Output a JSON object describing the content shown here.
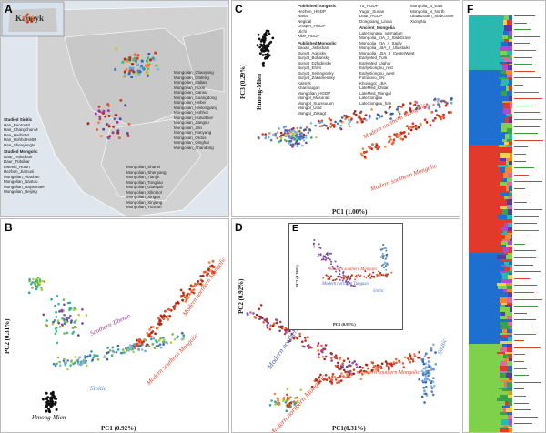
{
  "panels": {
    "A": {
      "label": "A",
      "inset_label": "Kalmyk",
      "studied_sinitic_title": "Studied Sinitic",
      "studied_sinitic": [
        "Han_BaotouM",
        "Han_ChangchunM",
        "Han_HarbinM",
        "Han_HohhotHetM",
        "Han_ShenyangM"
      ],
      "studied_mongolic_title": "Studied Mongolic",
      "studied_mongolic": [
        "Daur_Hulunbuir",
        "Daur_Tsitsihar",
        "Ewenki_Hulun",
        "Hezhen_Jiamusi",
        "Mongolian_Alashan",
        "Mongolian_Baotou",
        "Mongolian_Bayannaer",
        "Mongolian_Beijing"
      ],
      "col2": [
        "Mongolian_Chaoyang",
        "Mongolian_Chifeng",
        "Mongolian_Dalian",
        "Mongolian_Fuxin",
        "Mongolian_Gansu",
        "Mongolian_Guangdong",
        "Mongolian_Hebei",
        "Mongolian_Heilongjiang",
        "Mongolian_Hohhot",
        "Mongolian_HulunBuir",
        "Mongolian_Jiangsu",
        "Mongolian_Jilin",
        "Mongolian_Nanyang",
        "Mongolian_Ordos",
        "Mongolian_Qinghai",
        "Mongolian_Shandong"
      ],
      "col3": [
        "Mongolian_Shanxi",
        "Mongolian_Shenyang",
        "Mongolian_Tianjin",
        "Mongolian_Tongliao",
        "Mongolian_Ulanqab",
        "Mongolian_XilinGol",
        "Mongolian_Xingan",
        "Mongolian_Xinjiang",
        "Mongolian_Yunnan"
      ]
    },
    "B": {
      "label": "B",
      "xlabel": "PC1 (0.92%)",
      "ylabel": "PC2 (0.31%)",
      "clusters": [
        "Hmong-Mien",
        "Sinitic",
        "Southern Tibetan",
        "Modern southern Mongolic",
        "Modern northern Mongolic"
      ]
    },
    "C": {
      "label": "C",
      "xlabel": "PC1 (1.00%)",
      "ylabel": "PC3 (0.29%)",
      "clusters": [
        "Hmong-Mien",
        "Modern northern Mongolic",
        "Modern southern Mongolic"
      ],
      "legend1_title": "Published Tungusic",
      "legend1": [
        "Hezhen_HGDP",
        "Nanai",
        "Negidal",
        "Oroqen_HGDP",
        "Ulchi",
        "Xibe_HGDP"
      ],
      "legend2_title": "Published Mongolic",
      "legend2": [
        "Baoan_Jishishan",
        "Buryat_Aginsky",
        "Buryat_Bohansky",
        "Buryat_Dzhidinsky",
        "Buryat_Ehirit",
        "Buryat_Selenginsky",
        "Buryat_Zakamensky",
        "Kalmyk",
        "Kharnuugan",
        "Mongolian_HGDP",
        "Mongol_Masorias",
        "Mongol_Suussuuon",
        "Mongol_Uuld",
        "Mongol_Zasagt"
      ],
      "legend3": [
        "Tu_HGDP",
        "Yugur_Sunan",
        "Daur_HGDP",
        "Dongxiang_Linxia"
      ],
      "legend4_title": "Ancient_Mongolia",
      "legend4": [
        "LateXiongnu_sarmatian",
        "Mongolia_EIA_3_SlabGrave",
        "Mongolia_EIA_4_Sagly",
        "Mongolia_LBA_2_Uliastaikh",
        "Mongolia_LBA_4_CenterWest",
        "EarlyMed_Turk",
        "EarlyMed_Uighur",
        "EarlyXiongnu_rest",
        "EarlyXiongnu_west",
        "Fofonovo_EN",
        "Khovsgol_LBA",
        "LateMed_Khitan",
        "LateMed_Mongol",
        "LateXiongnu",
        "LateXiongnu_han"
      ],
      "legend5": [
        "Mongolia_N_East",
        "Mongolia_N_North",
        "Ulaanzuukh_SlabGrave",
        "XiongNu"
      ]
    },
    "D": {
      "label": "D",
      "xlabel": "PC1(0.31%)",
      "ylabel": "PC2 (0.92%)",
      "clusters": [
        "Modern northern Tungusic",
        "Modern northern Mongolic",
        "Modern southern Mongolic",
        "Sinitic"
      ]
    },
    "E": {
      "label": "E",
      "xlabel": "PC1 (0.92%)",
      "ylabel": "PC2 (0.28%)",
      "clusters": [
        "Modern southern Mongolic",
        "Modern northern Tungusic",
        "Sinitic"
      ]
    },
    "F": {
      "label": "F"
    }
  },
  "colors": {
    "mongolic": "#d8432a",
    "sinitic": "#4f7fc4",
    "tungusic": "#5a4aa0",
    "hmong": "#111111",
    "tibetan": "#9c3aa0",
    "green": "#7cb842",
    "teal": "#2aa0a8"
  }
}
